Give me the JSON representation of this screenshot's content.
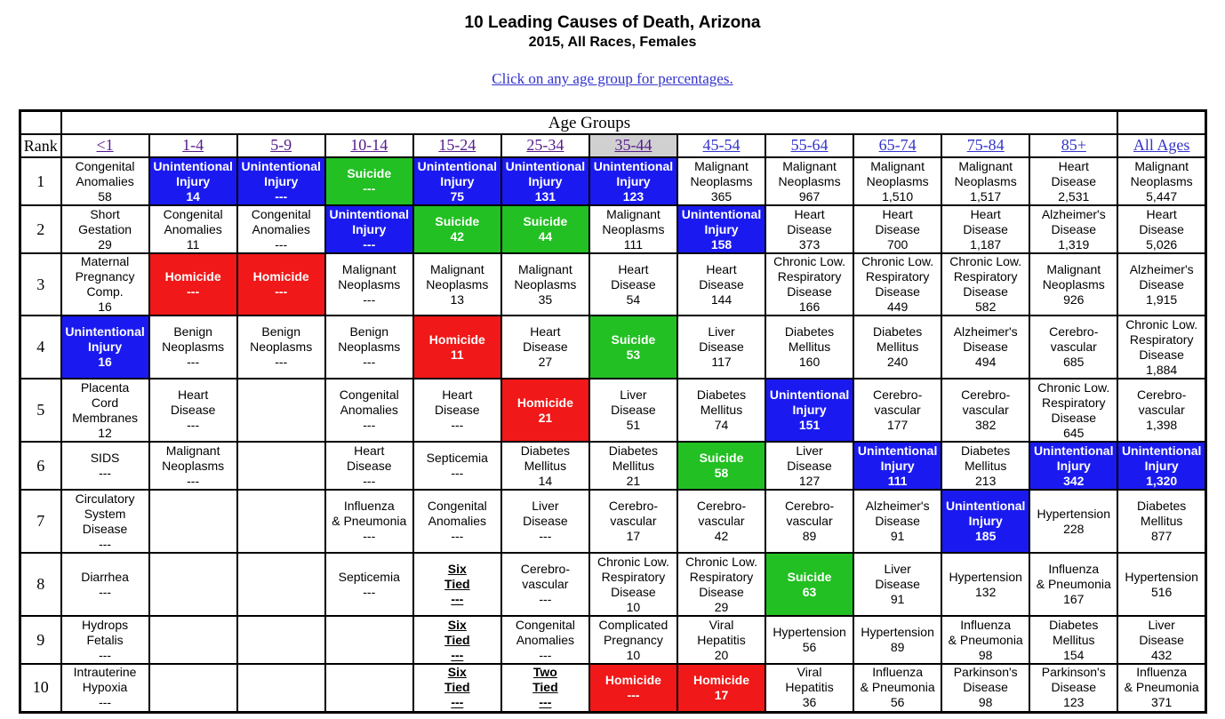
{
  "page": {
    "title": "10 Leading Causes of Death, Arizona",
    "subtitle": "2015, All Races, Females",
    "instruction": "Click on any age group for percentages."
  },
  "colors": {
    "unintentional_injury": "#1a1af0",
    "suicide": "#22c022",
    "homicide": "#f01818"
  },
  "table": {
    "age_groups_label": "Age Groups",
    "rank_label": "Rank",
    "age_columns": [
      "<1",
      "1-4",
      "5-9",
      "10-14",
      "15-24",
      "25-34",
      "35-44",
      "45-54",
      "55-64",
      "65-74",
      "75-84",
      "85+",
      "All Ages"
    ],
    "selected_age_column": "35-44",
    "rows": [
      {
        "rank": "1",
        "heights": 54,
        "cells": [
          {
            "lines": [
              "Congenital",
              "Anomalies",
              "58"
            ]
          },
          {
            "lines": [
              "Unintentional",
              "Injury",
              "14"
            ],
            "color": "blue"
          },
          {
            "lines": [
              "Unintentional",
              "Injury",
              "---"
            ],
            "color": "blue"
          },
          {
            "lines": [
              "Suicide",
              "---"
            ],
            "color": "green"
          },
          {
            "lines": [
              "Unintentional",
              "Injury",
              "75"
            ],
            "color": "blue"
          },
          {
            "lines": [
              "Unintentional",
              "Injury",
              "131"
            ],
            "color": "blue"
          },
          {
            "lines": [
              "Unintentional",
              "Injury",
              "123"
            ],
            "color": "blue"
          },
          {
            "lines": [
              "Malignant",
              "Neoplasms",
              "365"
            ]
          },
          {
            "lines": [
              "Malignant",
              "Neoplasms",
              "967"
            ]
          },
          {
            "lines": [
              "Malignant",
              "Neoplasms",
              "1,510"
            ]
          },
          {
            "lines": [
              "Malignant",
              "Neoplasms",
              "1,517"
            ]
          },
          {
            "lines": [
              "Heart",
              "Disease",
              "2,531"
            ]
          },
          {
            "lines": [
              "Malignant",
              "Neoplasms",
              "5,447"
            ]
          }
        ]
      },
      {
        "rank": "2",
        "cells": [
          {
            "lines": [
              "Short",
              "Gestation",
              "29"
            ]
          },
          {
            "lines": [
              "Congenital",
              "Anomalies",
              "11"
            ]
          },
          {
            "lines": [
              "Congenital",
              "Anomalies",
              "---"
            ]
          },
          {
            "lines": [
              "Unintentional",
              "Injury",
              "---"
            ],
            "color": "blue"
          },
          {
            "lines": [
              "Suicide",
              "42"
            ],
            "color": "green"
          },
          {
            "lines": [
              "Suicide",
              "44"
            ],
            "color": "green"
          },
          {
            "lines": [
              "Malignant",
              "Neoplasms",
              "111"
            ]
          },
          {
            "lines": [
              "Unintentional",
              "Injury",
              "158"
            ],
            "color": "blue"
          },
          {
            "lines": [
              "Heart",
              "Disease",
              "373"
            ]
          },
          {
            "lines": [
              "Heart",
              "Disease",
              "700"
            ]
          },
          {
            "lines": [
              "Heart",
              "Disease",
              "1,187"
            ]
          },
          {
            "lines": [
              "Alzheimer's",
              "Disease",
              "1,319"
            ]
          },
          {
            "lines": [
              "Heart",
              "Disease",
              "5,026"
            ]
          }
        ]
      },
      {
        "rank": "3",
        "cells": [
          {
            "lines": [
              "Maternal",
              "Pregnancy",
              "Comp.",
              "16"
            ]
          },
          {
            "lines": [
              "Homicide",
              "---"
            ],
            "color": "red"
          },
          {
            "lines": [
              "Homicide",
              "---"
            ],
            "color": "red"
          },
          {
            "lines": [
              "Malignant",
              "Neoplasms",
              "---"
            ]
          },
          {
            "lines": [
              "Malignant",
              "Neoplasms",
              "13"
            ]
          },
          {
            "lines": [
              "Malignant",
              "Neoplasms",
              "35"
            ]
          },
          {
            "lines": [
              "Heart",
              "Disease",
              "54"
            ]
          },
          {
            "lines": [
              "Heart",
              "Disease",
              "144"
            ]
          },
          {
            "lines": [
              "Chronic Low.",
              "Respiratory",
              "Disease",
              "166"
            ]
          },
          {
            "lines": [
              "Chronic Low.",
              "Respiratory",
              "Disease",
              "449"
            ]
          },
          {
            "lines": [
              "Chronic Low.",
              "Respiratory",
              "Disease",
              "582"
            ]
          },
          {
            "lines": [
              "Malignant",
              "Neoplasms",
              "926"
            ]
          },
          {
            "lines": [
              "Alzheimer's",
              "Disease",
              "1,915"
            ]
          }
        ]
      },
      {
        "rank": "4",
        "cells": [
          {
            "lines": [
              "Unintentional",
              "Injury",
              "16"
            ],
            "color": "blue"
          },
          {
            "lines": [
              "Benign",
              "Neoplasms",
              "---"
            ]
          },
          {
            "lines": [
              "Benign",
              "Neoplasms",
              "---"
            ]
          },
          {
            "lines": [
              "Benign",
              "Neoplasms",
              "---"
            ]
          },
          {
            "lines": [
              "Homicide",
              "11"
            ],
            "color": "red"
          },
          {
            "lines": [
              "Heart",
              "Disease",
              "27"
            ]
          },
          {
            "lines": [
              "Suicide",
              "53"
            ],
            "color": "green"
          },
          {
            "lines": [
              "Liver",
              "Disease",
              "117"
            ]
          },
          {
            "lines": [
              "Diabetes",
              "Mellitus",
              "160"
            ]
          },
          {
            "lines": [
              "Diabetes",
              "Mellitus",
              "240"
            ]
          },
          {
            "lines": [
              "Alzheimer's",
              "Disease",
              "494"
            ]
          },
          {
            "lines": [
              "Cerebro-",
              "vascular",
              "685"
            ]
          },
          {
            "lines": [
              "Chronic Low.",
              "Respiratory",
              "Disease",
              "1,884"
            ]
          }
        ]
      },
      {
        "rank": "5",
        "cells": [
          {
            "lines": [
              "Placenta",
              "Cord",
              "Membranes",
              "12"
            ]
          },
          {
            "lines": [
              "Heart",
              "Disease",
              "---"
            ]
          },
          {
            "lines": []
          },
          {
            "lines": [
              "Congenital",
              "Anomalies",
              "---"
            ]
          },
          {
            "lines": [
              "Heart",
              "Disease",
              "---"
            ]
          },
          {
            "lines": [
              "Homicide",
              "21"
            ],
            "color": "red"
          },
          {
            "lines": [
              "Liver",
              "Disease",
              "51"
            ]
          },
          {
            "lines": [
              "Diabetes",
              "Mellitus",
              "74"
            ]
          },
          {
            "lines": [
              "Unintentional",
              "Injury",
              "151"
            ],
            "color": "blue"
          },
          {
            "lines": [
              "Cerebro-",
              "vascular",
              "177"
            ]
          },
          {
            "lines": [
              "Cerebro-",
              "vascular",
              "382"
            ]
          },
          {
            "lines": [
              "Chronic Low.",
              "Respiratory",
              "Disease",
              "645"
            ]
          },
          {
            "lines": [
              "Cerebro-",
              "vascular",
              "1,398"
            ]
          }
        ]
      },
      {
        "rank": "6",
        "cells": [
          {
            "lines": [
              "SIDS",
              "---"
            ]
          },
          {
            "lines": [
              "Malignant",
              "Neoplasms",
              "---"
            ]
          },
          {
            "lines": []
          },
          {
            "lines": [
              "Heart",
              "Disease",
              "---"
            ]
          },
          {
            "lines": [
              "Septicemia",
              "---"
            ]
          },
          {
            "lines": [
              "Diabetes",
              "Mellitus",
              "14"
            ]
          },
          {
            "lines": [
              "Diabetes",
              "Mellitus",
              "21"
            ]
          },
          {
            "lines": [
              "Suicide",
              "58"
            ],
            "color": "green"
          },
          {
            "lines": [
              "Liver",
              "Disease",
              "127"
            ]
          },
          {
            "lines": [
              "Unintentional",
              "Injury",
              "111"
            ],
            "color": "blue"
          },
          {
            "lines": [
              "Diabetes",
              "Mellitus",
              "213"
            ]
          },
          {
            "lines": [
              "Unintentional",
              "Injury",
              "342"
            ],
            "color": "blue"
          },
          {
            "lines": [
              "Unintentional",
              "Injury",
              "1,320"
            ],
            "color": "blue"
          }
        ]
      },
      {
        "rank": "7",
        "cells": [
          {
            "lines": [
              "Circulatory",
              "System",
              "Disease",
              "---"
            ]
          },
          {
            "lines": []
          },
          {
            "lines": []
          },
          {
            "lines": [
              "Influenza",
              "& Pneumonia",
              "---"
            ]
          },
          {
            "lines": [
              "Congenital",
              "Anomalies",
              "---"
            ]
          },
          {
            "lines": [
              "Liver",
              "Disease",
              "---"
            ]
          },
          {
            "lines": [
              "Cerebro-",
              "vascular",
              "17"
            ]
          },
          {
            "lines": [
              "Cerebro-",
              "vascular",
              "42"
            ]
          },
          {
            "lines": [
              "Cerebro-",
              "vascular",
              "89"
            ]
          },
          {
            "lines": [
              "Alzheimer's",
              "Disease",
              "91"
            ]
          },
          {
            "lines": [
              "Unintentional",
              "Injury",
              "185"
            ],
            "color": "blue"
          },
          {
            "lines": [
              "Hypertension",
              "228"
            ]
          },
          {
            "lines": [
              "Diabetes",
              "Mellitus",
              "877"
            ]
          }
        ]
      },
      {
        "rank": "8",
        "cells": [
          {
            "lines": [
              "Diarrhea",
              "---"
            ]
          },
          {
            "lines": []
          },
          {
            "lines": []
          },
          {
            "lines": [
              "Septicemia",
              "---"
            ]
          },
          {
            "lines": [
              "Six",
              "Tied",
              "---"
            ],
            "tied": true
          },
          {
            "lines": [
              "Cerebro-",
              "vascular",
              "---"
            ]
          },
          {
            "lines": [
              "Chronic Low.",
              "Respiratory",
              "Disease",
              "10"
            ]
          },
          {
            "lines": [
              "Chronic Low.",
              "Respiratory",
              "Disease",
              "29"
            ]
          },
          {
            "lines": [
              "Suicide",
              "63"
            ],
            "color": "green"
          },
          {
            "lines": [
              "Liver",
              "Disease",
              "91"
            ]
          },
          {
            "lines": [
              "Hypertension",
              "132"
            ]
          },
          {
            "lines": [
              "Influenza",
              "& Pneumonia",
              "167"
            ]
          },
          {
            "lines": [
              "Hypertension",
              "516"
            ]
          }
        ]
      },
      {
        "rank": "9",
        "cells": [
          {
            "lines": [
              "Hydrops",
              "Fetalis",
              "---"
            ]
          },
          {
            "lines": []
          },
          {
            "lines": []
          },
          {
            "lines": []
          },
          {
            "lines": [
              "Six",
              "Tied",
              "---"
            ],
            "tied": true
          },
          {
            "lines": [
              "Congenital",
              "Anomalies",
              "---"
            ]
          },
          {
            "lines": [
              "Complicated",
              "Pregnancy",
              "10"
            ]
          },
          {
            "lines": [
              "Viral",
              "Hepatitis",
              "20"
            ]
          },
          {
            "lines": [
              "Hypertension",
              "56"
            ]
          },
          {
            "lines": [
              "Hypertension",
              "89"
            ]
          },
          {
            "lines": [
              "Influenza",
              "& Pneumonia",
              "98"
            ]
          },
          {
            "lines": [
              "Diabetes",
              "Mellitus",
              "154"
            ]
          },
          {
            "lines": [
              "Liver",
              "Disease",
              "432"
            ]
          }
        ]
      },
      {
        "rank": "10",
        "cells": [
          {
            "lines": [
              "Intrauterine",
              "Hypoxia",
              "---"
            ]
          },
          {
            "lines": []
          },
          {
            "lines": []
          },
          {
            "lines": []
          },
          {
            "lines": [
              "Six",
              "Tied",
              "---"
            ],
            "tied": true
          },
          {
            "lines": [
              "Two",
              "Tied",
              "---"
            ],
            "tied": true
          },
          {
            "lines": [
              "Homicide",
              "---"
            ],
            "color": "red"
          },
          {
            "lines": [
              "Homicide",
              "17"
            ],
            "color": "red"
          },
          {
            "lines": [
              "Viral",
              "Hepatitis",
              "36"
            ]
          },
          {
            "lines": [
              "Influenza",
              "& Pneumonia",
              "56"
            ]
          },
          {
            "lines": [
              "Parkinson's",
              "Disease",
              "98"
            ]
          },
          {
            "lines": [
              "Parkinson's",
              "Disease",
              "123"
            ]
          },
          {
            "lines": [
              "Influenza",
              "& Pneumonia",
              "371"
            ]
          }
        ]
      }
    ]
  }
}
